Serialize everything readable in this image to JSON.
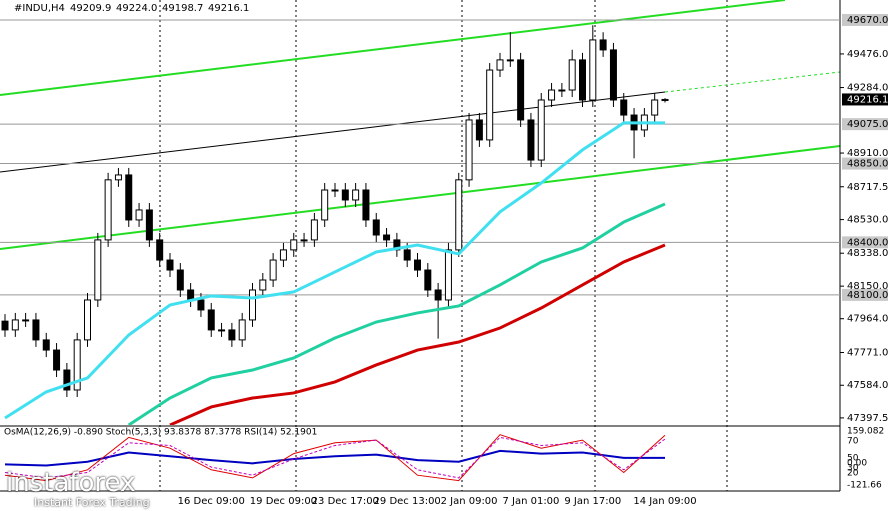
{
  "header": "#INDU,H4",
  "last_bar_labels": [
    "49209.9",
    "49224.0",
    "49198.7",
    "49216.1"
  ],
  "chart_data": {
    "type": "candlestick",
    "categories": [
      null,
      null,
      null,
      null,
      null,
      null,
      null,
      null,
      null,
      null,
      null,
      null,
      null,
      null,
      null,
      null,
      null,
      null,
      null,
      null,
      "16 Dec 09:00",
      null,
      null,
      null,
      null,
      null,
      null,
      "19 Dec 09:00",
      null,
      null,
      null,
      null,
      null,
      "23 Dec 17:00",
      null,
      null,
      null,
      null,
      null,
      "29 Dec 13:00",
      null,
      null,
      null,
      null,
      null,
      "2 Jan 09:00",
      null,
      null,
      null,
      null,
      null,
      "7 Jan 01:00",
      null,
      null,
      null,
      null,
      null,
      "9 Jan 17:00",
      null,
      null,
      null,
      null,
      null,
      null,
      "14 Jan 09:00"
    ],
    "open": [
      47950,
      47900,
      47957,
      47957,
      47843,
      47785,
      47671,
      47557,
      47843,
      48071,
      48414,
      48757,
      48785,
      48528,
      48585,
      48414,
      48299,
      48242,
      48128,
      48071,
      48014,
      47900,
      47900,
      47843,
      47957,
      48128,
      48185,
      48299,
      48357,
      48414,
      48414,
      48528,
      48699,
      48699,
      48642,
      48699,
      48528,
      48442,
      48414,
      48357,
      48299,
      48242,
      48128,
      48071,
      48357,
      48757,
      49099,
      48985,
      49384,
      49442,
      49442,
      49099,
      48870,
      49213,
      49270,
      49270,
      49442,
      49213,
      49556,
      49499,
      49213,
      49127,
      49042,
      49127,
      49209.9
    ],
    "high": [
      47990,
      47997,
      47997,
      47997,
      47883,
      47825,
      47711,
      47883,
      48111,
      48454,
      48797,
      48825,
      48825,
      48625,
      48625,
      48454,
      48339,
      48282,
      48168,
      48111,
      48054,
      47940,
      47940,
      47997,
      48168,
      48225,
      48339,
      48397,
      48454,
      48454,
      48568,
      48739,
      48739,
      48739,
      48739,
      48739,
      48568,
      48482,
      48454,
      48397,
      48339,
      48282,
      48168,
      48397,
      48797,
      49139,
      49139,
      49424,
      49482,
      49600,
      49482,
      49139,
      49253,
      49310,
      49310,
      49500,
      49482,
      49640,
      49600,
      49539,
      49253,
      49167,
      49167,
      49253,
      49224
    ],
    "low": [
      47860,
      47860,
      47917,
      47803,
      47745,
      47631,
      47517,
      47517,
      47803,
      48031,
      48374,
      48717,
      48488,
      48488,
      48374,
      48259,
      48202,
      48088,
      48031,
      47974,
      47860,
      47860,
      47803,
      47803,
      47917,
      48088,
      48145,
      48259,
      48317,
      48374,
      48374,
      48488,
      48659,
      48602,
      48602,
      48488,
      48402,
      48374,
      48317,
      48259,
      48202,
      48088,
      47850,
      48031,
      48317,
      48717,
      48945,
      48945,
      49344,
      49402,
      49059,
      48830,
      48830,
      49173,
      49230,
      49230,
      49173,
      49173,
      49459,
      49173,
      49087,
      48880,
      49002,
      49087,
      49198.7
    ],
    "close": [
      47900,
      47957,
      47957,
      47843,
      47785,
      47671,
      47557,
      47843,
      48071,
      48414,
      48757,
      48785,
      48528,
      48585,
      48414,
      48299,
      48242,
      48128,
      48071,
      48014,
      47900,
      47900,
      47843,
      47957,
      48128,
      48185,
      48299,
      48357,
      48414,
      48414,
      48528,
      48699,
      48699,
      48642,
      48699,
      48528,
      48442,
      48414,
      48357,
      48299,
      48242,
      48128,
      48071,
      48357,
      48757,
      49099,
      48985,
      49384,
      49442,
      49442,
      49099,
      48870,
      49213,
      49270,
      49270,
      49442,
      49213,
      49556,
      49499,
      49213,
      49127,
      49042,
      49127,
      49213,
      49216.1
    ],
    "up_color": "#ffffff",
    "down_color": "#000000",
    "ylim": [
      47357,
      49784
    ],
    "yticks": [
      {
        "value": 49476,
        "label": "49476.0"
      },
      {
        "value": 49284,
        "label": "49284.0"
      },
      {
        "value": 48910,
        "label": "48910.0"
      },
      {
        "value": 48717.5,
        "label": "48717.5"
      },
      {
        "value": 48530,
        "label": "48530.0"
      },
      {
        "value": 48338,
        "label": "48338.0"
      },
      {
        "value": 48150,
        "label": "48150.0"
      },
      {
        "value": 47964,
        "label": "47964.0"
      },
      {
        "value": 47771,
        "label": "47771.0"
      },
      {
        "value": 47584,
        "label": "47584.0"
      },
      {
        "value": 47397.5,
        "label": "47397.5"
      }
    ],
    "levels": [
      {
        "value": 49670,
        "label": "49670.0"
      },
      {
        "value": 49075,
        "label": "49075.0"
      },
      {
        "value": 48850,
        "label": "48850.0"
      },
      {
        "value": 48400,
        "label": "48400.0"
      },
      {
        "value": 48100,
        "label": "48100.0"
      }
    ],
    "series": [
      {
        "color": "#40e0f0",
        "x": [
          0,
          4,
          8,
          12,
          16,
          20,
          24,
          28,
          32,
          36,
          40,
          44,
          48,
          52,
          56,
          60,
          64
        ],
        "values": [
          47397,
          47546,
          47626,
          47871,
          48042,
          48094,
          48082,
          48117,
          48231,
          48345,
          48385,
          48334,
          48574,
          48739,
          48928,
          49082,
          49082
        ]
      },
      {
        "color": "#20d0a0",
        "x": [
          12,
          16,
          20,
          24,
          28,
          32,
          36,
          40,
          44,
          48,
          52,
          56,
          60,
          64
        ],
        "values": [
          47357,
          47511,
          47626,
          47671,
          47740,
          47854,
          47945,
          47997,
          48037,
          48157,
          48288,
          48368,
          48516,
          48619
        ]
      },
      {
        "color": "#d00000",
        "x": [
          16,
          20,
          24,
          28,
          32,
          36,
          40,
          44,
          48,
          52,
          56,
          60,
          64
        ],
        "values": [
          47357,
          47460,
          47511,
          47540,
          47603,
          47700,
          47785,
          47831,
          47911,
          48025,
          48157,
          48288,
          48385
        ]
      }
    ]
  },
  "indicator_panel": {
    "label": "OsMA(12,26,9) -0.890  Stoch(5,3,3) 93.8378 87.3778  RSI(14) 52.1901",
    "scale_labels": [
      "159.082",
      "70",
      "50",
      "0.00",
      "30",
      "20",
      "-121.66"
    ],
    "ylim": [
      0,
      100
    ],
    "x": [
      0,
      4,
      8,
      12,
      16,
      20,
      24,
      28,
      32,
      36,
      40,
      44,
      48,
      52,
      56,
      60,
      64
    ],
    "series": [
      {
        "color": "#0000c0",
        "values": [
          40,
          38,
          45,
          62,
          55,
          48,
          42,
          50,
          55,
          58,
          48,
          45,
          65,
          60,
          62,
          52,
          52
        ]
      },
      {
        "color": "#e00000",
        "values": [
          20,
          10,
          30,
          90,
          70,
          30,
          15,
          60,
          80,
          85,
          20,
          10,
          95,
          70,
          85,
          25,
          94
        ]
      },
      {
        "color": "#c000c0",
        "values": [
          25,
          15,
          25,
          80,
          75,
          35,
          20,
          50,
          75,
          85,
          30,
          15,
          90,
          75,
          80,
          30,
          87
        ]
      }
    ]
  },
  "watermark": {
    "brand": "instaforex",
    "tagline": "Instant Forex Trading"
  }
}
